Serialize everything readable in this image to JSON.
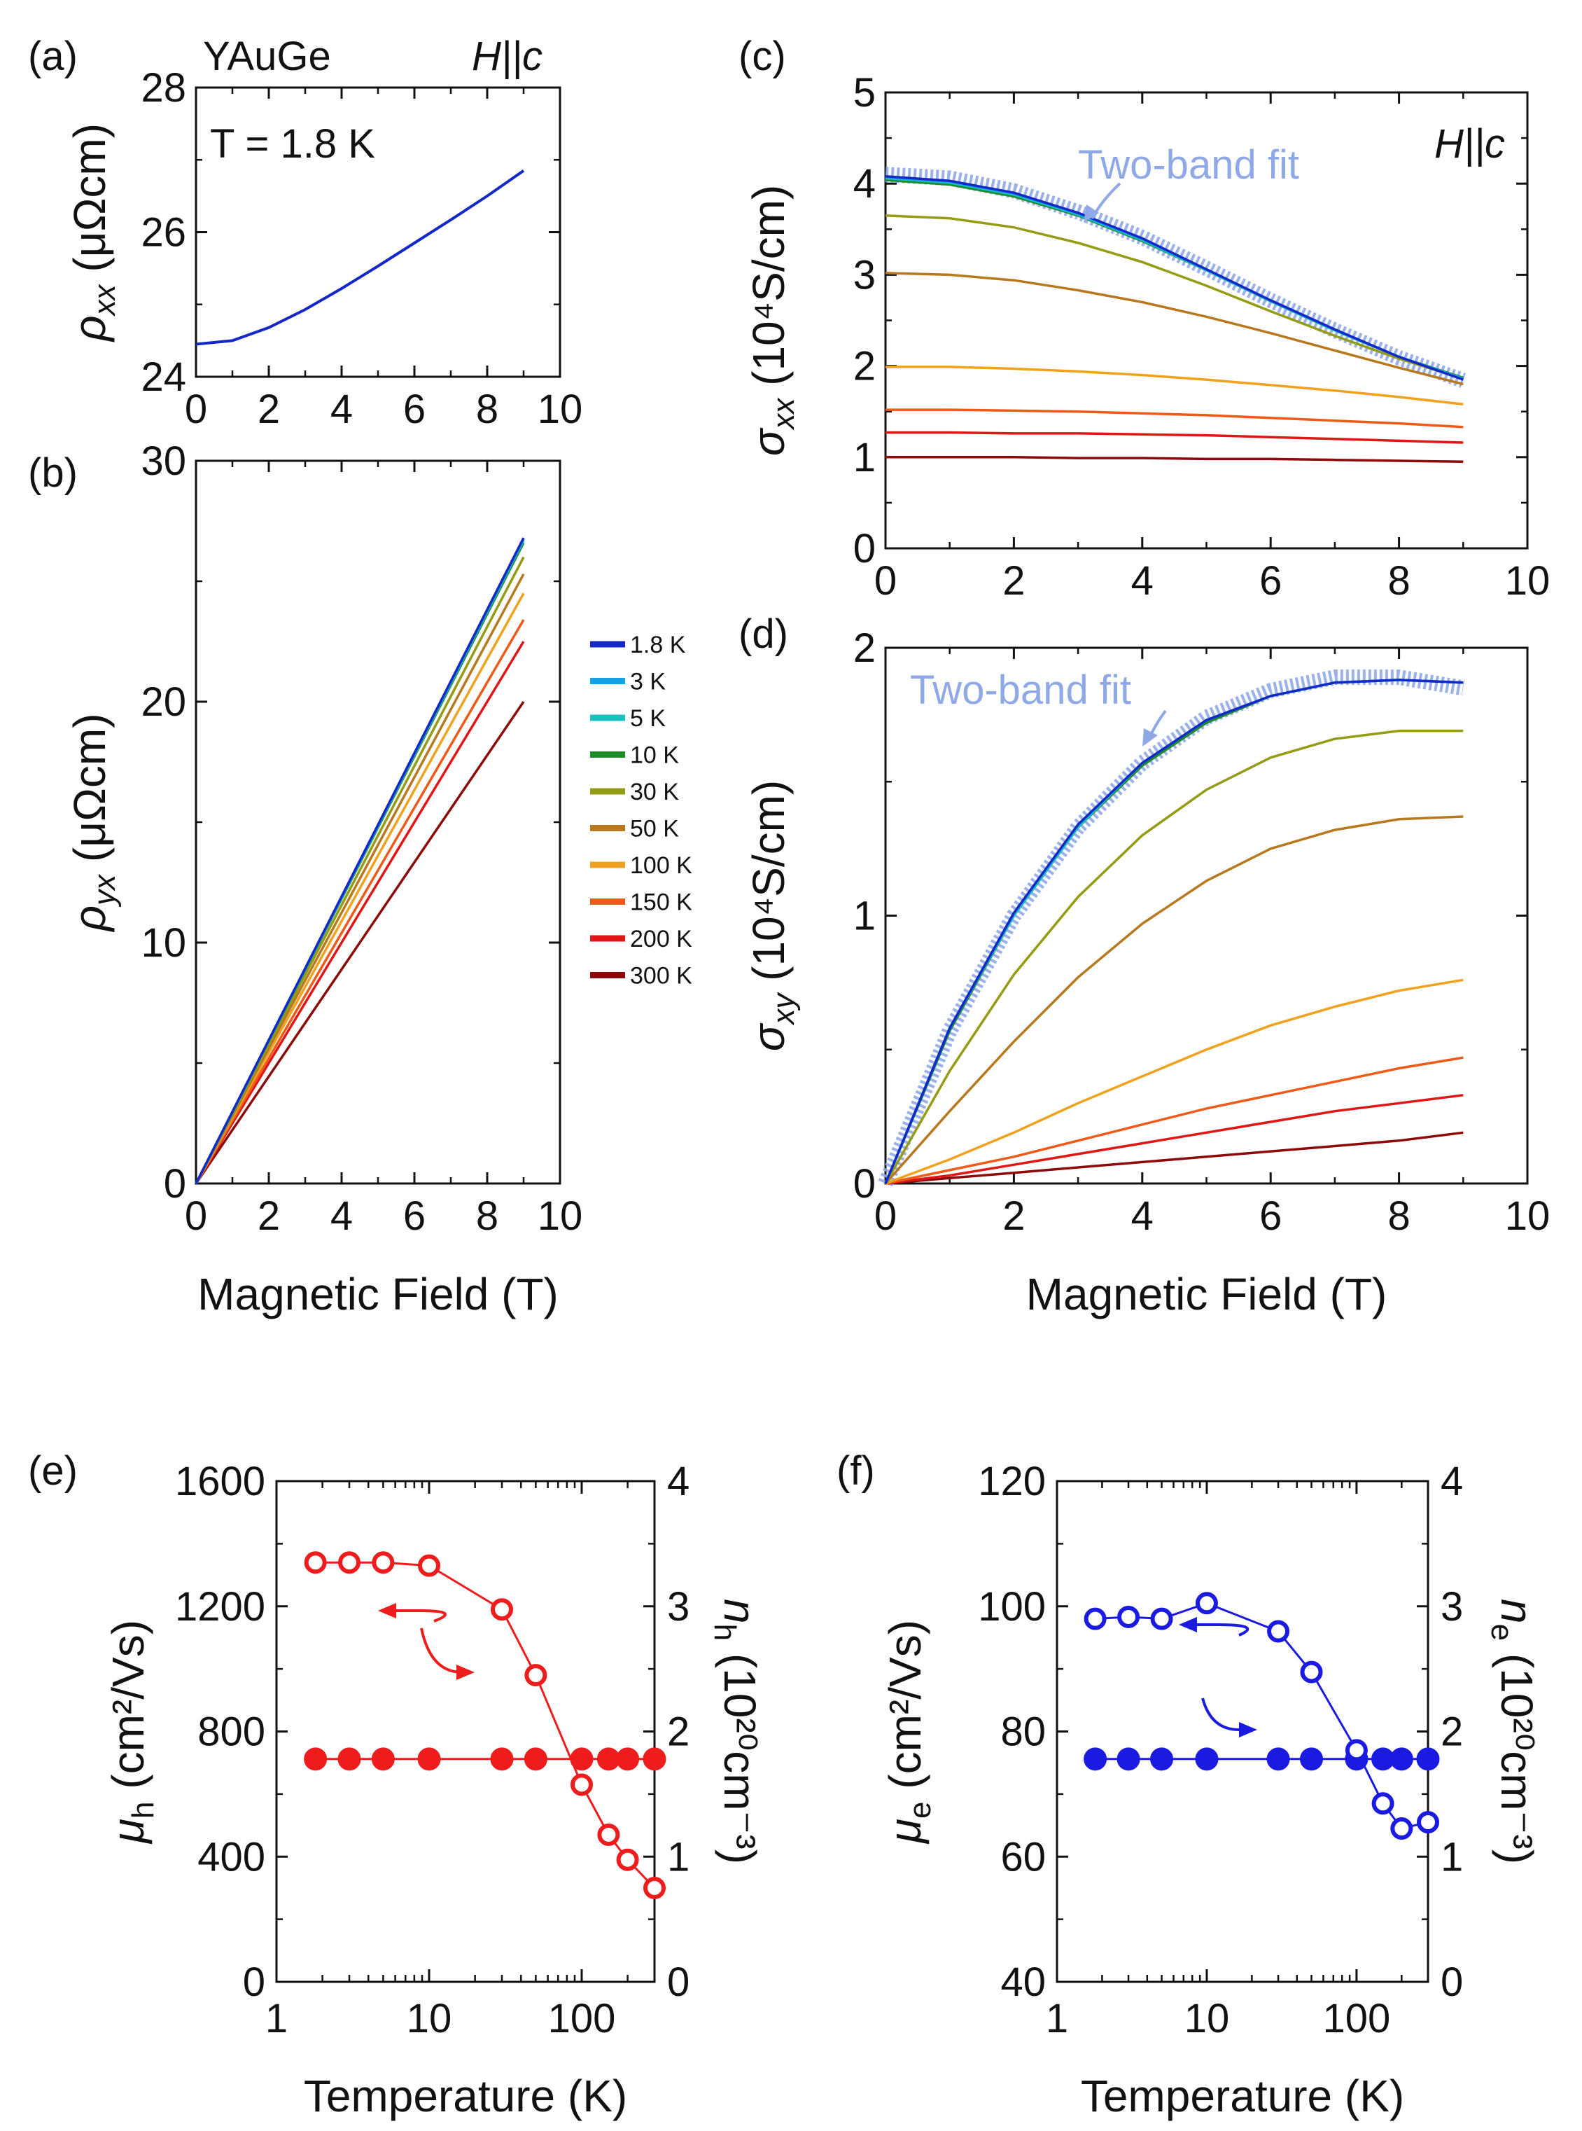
{
  "temperatures": [
    "1.8 K",
    "3 K",
    "5 K",
    "10 K",
    "30 K",
    "50 K",
    "100 K",
    "150 K",
    "200 K",
    "300 K"
  ],
  "colors": [
    "#1428c8",
    "#16a0e6",
    "#19c0c0",
    "#1c8c28",
    "#949c14",
    "#b8781e",
    "#f0a21e",
    "#ee5a18",
    "#e01616",
    "#8c0a0a"
  ],
  "chart_data": [
    {
      "id": "a",
      "type": "line",
      "panel_label": "(a)",
      "title": "YAuGe",
      "field_label": "H||c",
      "annotation": "T = 1.8 K",
      "xlabel": "",
      "ylabel": "ρxx (μΩcm)",
      "xlim": [
        0,
        10
      ],
      "ylim": [
        24,
        28
      ],
      "xticks": [
        "0",
        "2",
        "4",
        "6",
        "8",
        "10"
      ],
      "yticks": [
        "24",
        "26",
        "28"
      ],
      "series": [
        {
          "name": "1.8 K",
          "x": [
            0,
            1,
            2,
            3,
            4,
            5,
            6,
            7,
            8,
            9
          ],
          "y": [
            24.45,
            24.5,
            24.68,
            24.93,
            25.22,
            25.53,
            25.85,
            26.17,
            26.5,
            26.85
          ]
        }
      ]
    },
    {
      "id": "b",
      "type": "line",
      "panel_label": "(b)",
      "xlabel": "Magnetic Field (T)",
      "ylabel": "ρyx (μΩcm)",
      "xlim": [
        0,
        10
      ],
      "ylim": [
        0,
        30
      ],
      "xticks": [
        "0",
        "2",
        "4",
        "6",
        "8",
        "10"
      ],
      "yticks": [
        "0",
        "10",
        "20",
        "30"
      ],
      "series": [
        {
          "name": "1.8 K",
          "x": [
            0,
            9
          ],
          "y": [
            0,
            26.8
          ]
        },
        {
          "name": "3 K",
          "x": [
            0,
            9
          ],
          "y": [
            0,
            26.75
          ]
        },
        {
          "name": "5 K",
          "x": [
            0,
            9
          ],
          "y": [
            0,
            26.7
          ]
        },
        {
          "name": "10 K",
          "x": [
            0,
            9
          ],
          "y": [
            0,
            26.6
          ]
        },
        {
          "name": "30 K",
          "x": [
            0,
            9
          ],
          "y": [
            0,
            26.0
          ]
        },
        {
          "name": "50 K",
          "x": [
            0,
            9
          ],
          "y": [
            0,
            25.3
          ]
        },
        {
          "name": "100 K",
          "x": [
            0,
            9
          ],
          "y": [
            0,
            24.5
          ]
        },
        {
          "name": "150 K",
          "x": [
            0,
            9
          ],
          "y": [
            0,
            23.4
          ]
        },
        {
          "name": "200 K",
          "x": [
            0,
            9
          ],
          "y": [
            0,
            22.5
          ]
        },
        {
          "name": "300 K",
          "x": [
            0,
            9
          ],
          "y": [
            0,
            20.0
          ]
        }
      ]
    },
    {
      "id": "c",
      "type": "line",
      "panel_label": "(c)",
      "field_label": "H||c",
      "fit_label": "Two-band fit",
      "xlabel": "",
      "ylabel": "σxx (10^4 S/cm)",
      "xlim": [
        0,
        10
      ],
      "ylim": [
        0,
        5
      ],
      "xticks": [
        "0",
        "2",
        "4",
        "6",
        "8",
        "10"
      ],
      "yticks": [
        "0",
        "1",
        "2",
        "3",
        "4",
        "5"
      ],
      "x": [
        0,
        1,
        2,
        3,
        4,
        5,
        6,
        7,
        8,
        9
      ],
      "series": [
        {
          "name": "1.8 K",
          "y": [
            4.08,
            4.03,
            3.9,
            3.68,
            3.4,
            3.06,
            2.72,
            2.4,
            2.1,
            1.85
          ]
        },
        {
          "name": "3 K",
          "y": [
            4.07,
            4.02,
            3.89,
            3.67,
            3.39,
            3.06,
            2.72,
            2.4,
            2.1,
            1.86
          ]
        },
        {
          "name": "5 K",
          "y": [
            4.06,
            4.01,
            3.88,
            3.66,
            3.38,
            3.05,
            2.71,
            2.39,
            2.1,
            1.86
          ]
        },
        {
          "name": "10 K",
          "y": [
            4.04,
            3.99,
            3.86,
            3.65,
            3.37,
            3.05,
            2.71,
            2.39,
            2.1,
            1.87
          ]
        },
        {
          "name": "30 K",
          "y": [
            3.65,
            3.62,
            3.52,
            3.35,
            3.14,
            2.88,
            2.6,
            2.33,
            2.08,
            1.86
          ]
        },
        {
          "name": "50 K",
          "y": [
            3.02,
            3.0,
            2.94,
            2.83,
            2.7,
            2.54,
            2.36,
            2.17,
            1.98,
            1.8
          ]
        },
        {
          "name": "100 K",
          "y": [
            1.99,
            1.99,
            1.97,
            1.94,
            1.9,
            1.85,
            1.79,
            1.73,
            1.66,
            1.58
          ]
        },
        {
          "name": "150 K",
          "y": [
            1.52,
            1.52,
            1.51,
            1.5,
            1.48,
            1.46,
            1.43,
            1.4,
            1.37,
            1.33
          ]
        },
        {
          "name": "200 K",
          "y": [
            1.27,
            1.27,
            1.26,
            1.26,
            1.25,
            1.24,
            1.22,
            1.2,
            1.18,
            1.16
          ]
        },
        {
          "name": "300 K",
          "y": [
            1.0,
            1.0,
            1.0,
            0.99,
            0.99,
            0.98,
            0.98,
            0.97,
            0.96,
            0.95
          ]
        }
      ],
      "fit": {
        "name": "Two-band fit",
        "y": [
          4.1,
          4.06,
          3.92,
          3.69,
          3.41,
          3.07,
          2.72,
          2.39,
          2.09,
          1.84
        ]
      }
    },
    {
      "id": "d",
      "type": "line",
      "panel_label": "(d)",
      "fit_label": "Two-band fit",
      "xlabel": "Magnetic Field (T)",
      "ylabel": "σxy (10^4 S/cm)",
      "xlim": [
        0,
        10
      ],
      "ylim": [
        0,
        2
      ],
      "xticks": [
        "0",
        "2",
        "4",
        "6",
        "8",
        "10"
      ],
      "yticks": [
        "0",
        "1",
        "2"
      ],
      "x": [
        0,
        1,
        2,
        3,
        4,
        5,
        6,
        7,
        8,
        9
      ],
      "series": [
        {
          "name": "1.8 K",
          "y": [
            0,
            0.58,
            1.01,
            1.34,
            1.57,
            1.73,
            1.82,
            1.87,
            1.88,
            1.87
          ]
        },
        {
          "name": "3 K",
          "y": [
            0,
            0.58,
            1.01,
            1.34,
            1.57,
            1.73,
            1.82,
            1.87,
            1.88,
            1.87
          ]
        },
        {
          "name": "5 K",
          "y": [
            0,
            0.58,
            1.0,
            1.33,
            1.57,
            1.73,
            1.82,
            1.87,
            1.88,
            1.87
          ]
        },
        {
          "name": "10 K",
          "y": [
            0,
            0.57,
            1.0,
            1.33,
            1.56,
            1.72,
            1.82,
            1.87,
            1.88,
            1.87
          ]
        },
        {
          "name": "30 K",
          "y": [
            0,
            0.42,
            0.78,
            1.07,
            1.3,
            1.47,
            1.59,
            1.66,
            1.69,
            1.69
          ]
        },
        {
          "name": "50 K",
          "y": [
            0,
            0.27,
            0.53,
            0.77,
            0.97,
            1.13,
            1.25,
            1.32,
            1.36,
            1.37
          ]
        },
        {
          "name": "100 K",
          "y": [
            0,
            0.09,
            0.19,
            0.3,
            0.4,
            0.5,
            0.59,
            0.66,
            0.72,
            0.76
          ]
        },
        {
          "name": "150 K",
          "y": [
            0,
            0.05,
            0.1,
            0.16,
            0.22,
            0.28,
            0.33,
            0.38,
            0.43,
            0.47
          ]
        },
        {
          "name": "200 K",
          "y": [
            0,
            0.03,
            0.07,
            0.11,
            0.15,
            0.19,
            0.23,
            0.27,
            0.3,
            0.33
          ]
        },
        {
          "name": "300 K",
          "y": [
            0,
            0.02,
            0.04,
            0.06,
            0.08,
            0.1,
            0.12,
            0.14,
            0.16,
            0.19
          ]
        }
      ],
      "fit": {
        "name": "Two-band fit",
        "y": [
          0,
          0.57,
          1.0,
          1.33,
          1.57,
          1.74,
          1.84,
          1.89,
          1.89,
          1.85
        ]
      }
    },
    {
      "id": "e",
      "type": "scatter",
      "panel_label": "(e)",
      "xlabel": "Temperature (K)",
      "ylabel": "μh (cm²/Vs)",
      "ylabel_right": "nh (10^20 cm^-3)",
      "xscale": "log",
      "xlim": [
        1,
        300
      ],
      "ylim": [
        0,
        1600
      ],
      "ylim_right": [
        0,
        4
      ],
      "xticks": [
        "1",
        "10",
        "100"
      ],
      "yticks": [
        "0",
        "400",
        "800",
        "1200",
        "1600"
      ],
      "yticks_right": [
        "0",
        "1",
        "2",
        "3",
        "4"
      ],
      "T": [
        1.8,
        3,
        5,
        10,
        30,
        50,
        100,
        150,
        200,
        300
      ],
      "mobility": [
        1340,
        1340,
        1340,
        1330,
        1190,
        980,
        630,
        470,
        390,
        300
      ],
      "density": [
        1.78,
        1.78,
        1.78,
        1.78,
        1.78,
        1.78,
        1.78,
        1.78,
        1.78,
        1.78
      ]
    },
    {
      "id": "f",
      "type": "scatter",
      "panel_label": "(f)",
      "xlabel": "Temperature (K)",
      "ylabel": "μe (cm²/Vs)",
      "ylabel_right": "ne (10^20 cm^-3)",
      "xscale": "log",
      "xlim": [
        1,
        300
      ],
      "ylim": [
        40,
        120
      ],
      "ylim_right": [
        0,
        4
      ],
      "xticks": [
        "1",
        "10",
        "100"
      ],
      "yticks": [
        "40",
        "60",
        "80",
        "100",
        "120"
      ],
      "yticks_right": [
        "0",
        "1",
        "2",
        "3",
        "4"
      ],
      "T": [
        1.8,
        3,
        5,
        10,
        30,
        50,
        100,
        150,
        200,
        300
      ],
      "mobility": [
        98,
        98.3,
        98,
        100.5,
        96,
        89.5,
        77,
        68.5,
        64.5,
        65.5
      ],
      "density": [
        1.78,
        1.78,
        1.78,
        1.78,
        1.78,
        1.78,
        1.78,
        1.78,
        1.78,
        1.78
      ]
    }
  ]
}
